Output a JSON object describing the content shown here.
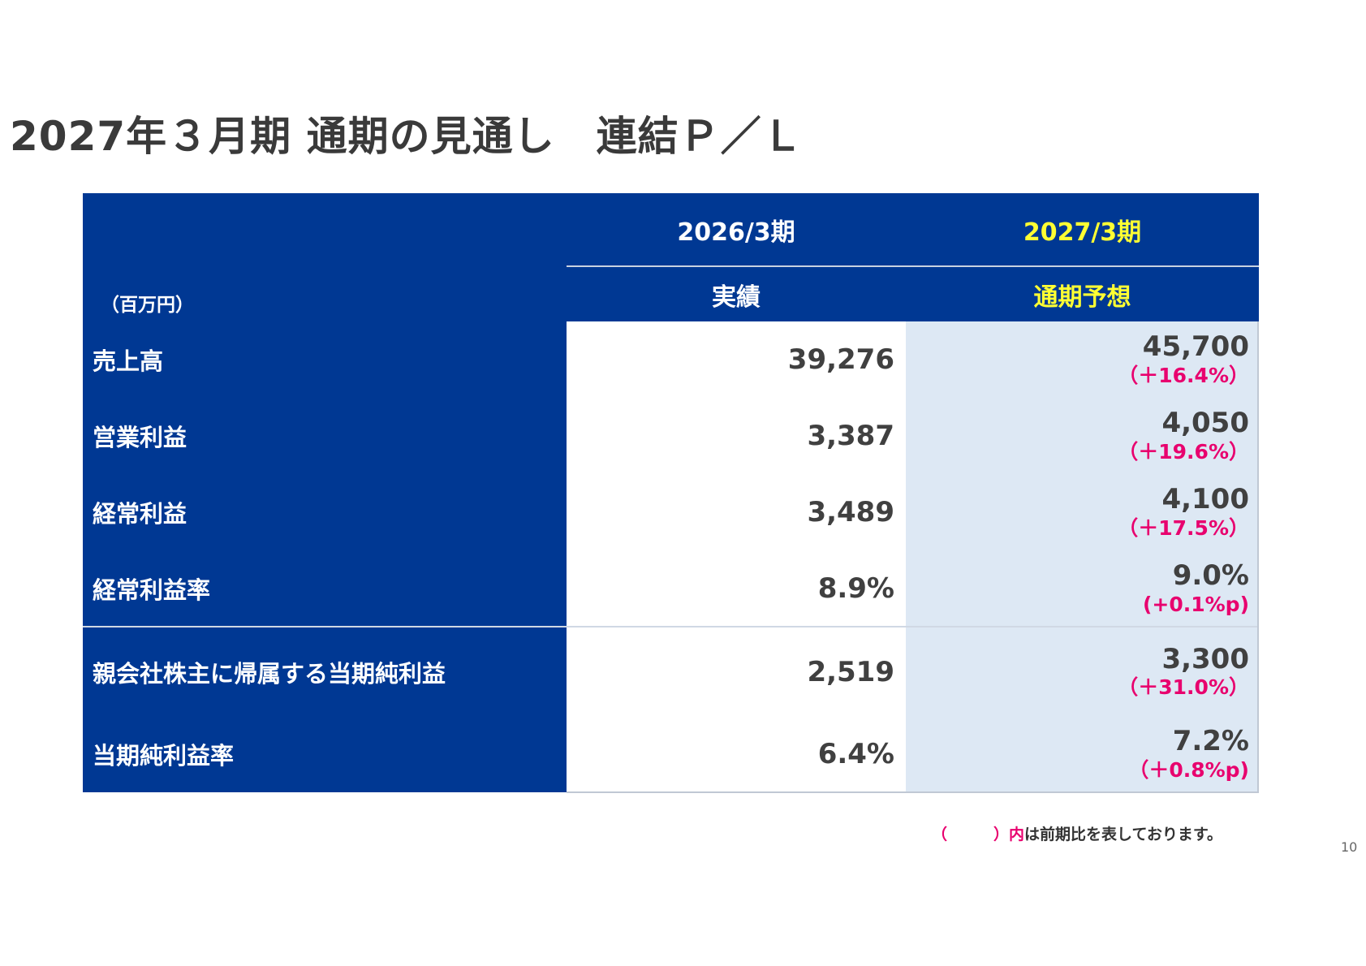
{
  "title": "2027年３月期 通期の見通し　連結Ｐ／Ｌ",
  "table": {
    "unit_label": "（百万円）",
    "col_prev_period": "2026/3期",
    "col_prev_type": "実績",
    "col_next_period": "2027/3期",
    "col_next_type": "通期予想",
    "rows": [
      {
        "label": "売上高",
        "actual": "39,276",
        "forecast": "45,700",
        "change": "（＋16.4%）"
      },
      {
        "label": "営業利益",
        "actual": "3,387",
        "forecast": "4,050",
        "change": "（＋19.6%）"
      },
      {
        "label": "経常利益",
        "actual": "3,489",
        "forecast": "4,100",
        "change": "（＋17.5%）"
      },
      {
        "label": "経常利益率",
        "actual": "8.9%",
        "forecast": "9.0%",
        "change": "(+0.1%p)"
      },
      {
        "label": "親会社株主に帰属する当期純利益",
        "actual": "2,519",
        "forecast": "3,300",
        "change": "（＋31.0%）"
      },
      {
        "label": "当期純利益率",
        "actual": "6.4%",
        "forecast": "7.2%",
        "change": "（＋0.8%p)"
      }
    ]
  },
  "footnote": {
    "paren": "（　　　）",
    "inner": "内",
    "text": "は前期比を表しております。"
  },
  "page_number": "10"
}
